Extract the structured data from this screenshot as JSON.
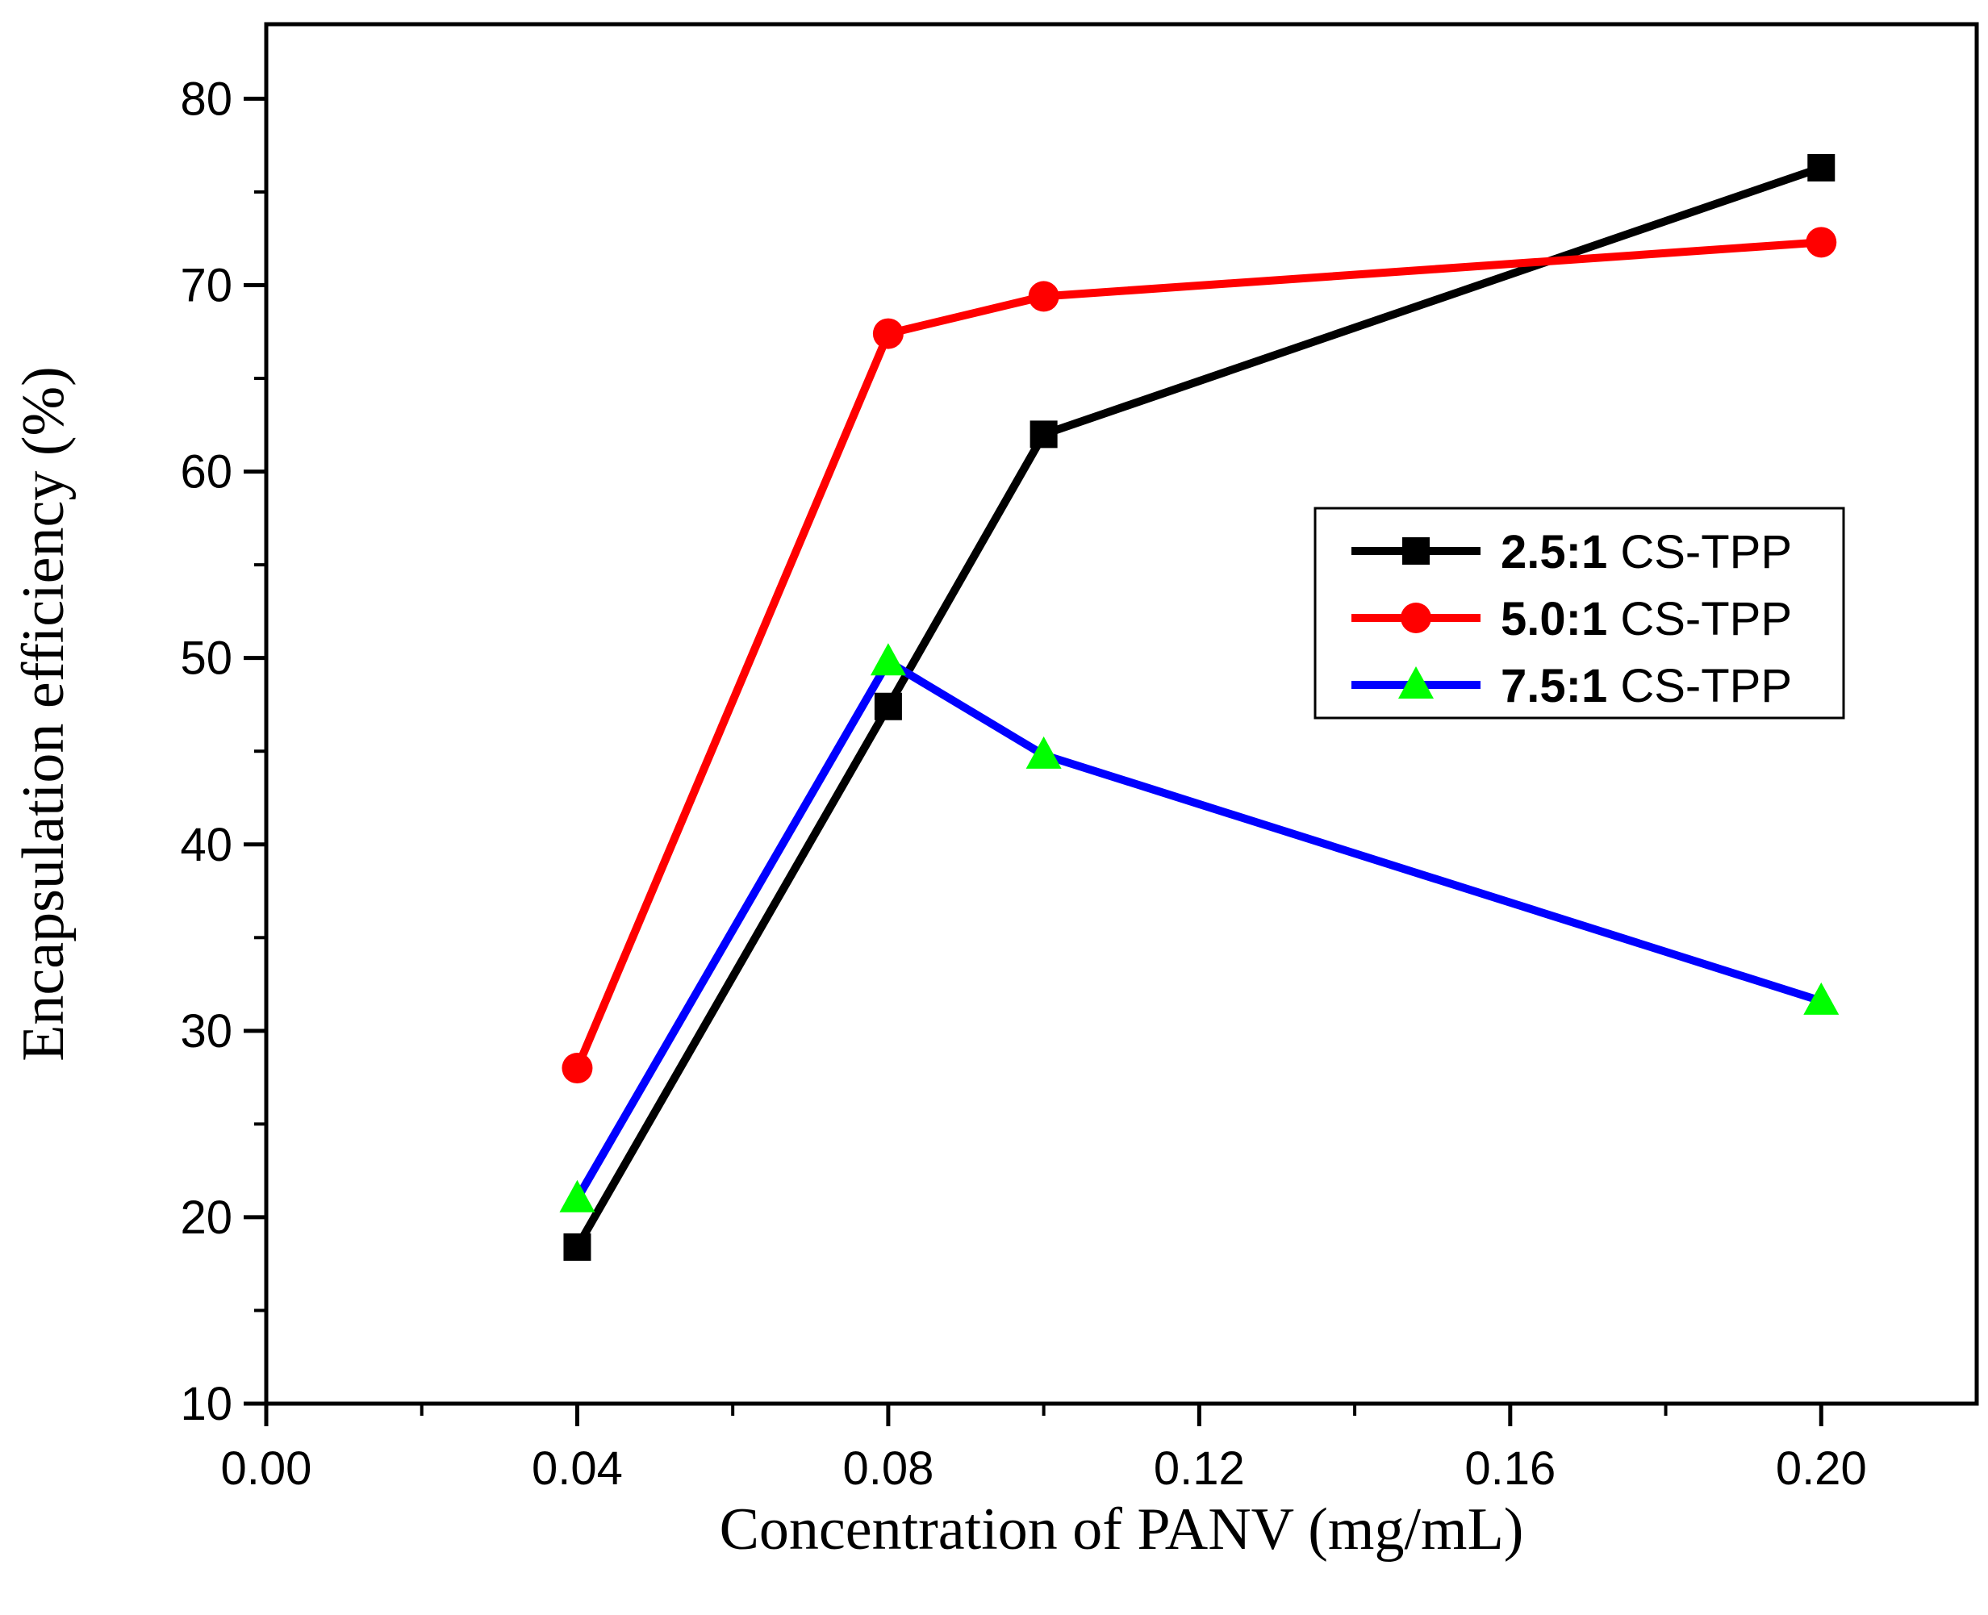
{
  "chart_data": {
    "type": "line",
    "title": "",
    "xlabel": "Concentration of PANV (mg/mL)",
    "ylabel": "Encapsulation efficiency (%)",
    "xlim": [
      0.0,
      0.22
    ],
    "ylim": [
      10,
      84
    ],
    "xticks": [
      0.0,
      0.04,
      0.08,
      0.12,
      0.16,
      0.2
    ],
    "xtick_labels": [
      "0.00",
      "0.04",
      "0.08",
      "0.12",
      "0.16",
      "0.20"
    ],
    "yticks": [
      10,
      20,
      30,
      40,
      50,
      60,
      70,
      80
    ],
    "ytick_labels": [
      "10",
      "20",
      "30",
      "40",
      "50",
      "60",
      "70",
      "80"
    ],
    "x": [
      0.04,
      0.08,
      0.1,
      0.2
    ],
    "grid": false,
    "legend_position": "center-right",
    "series": [
      {
        "name": "2.5:1 CS-TPP",
        "ratio": "2.5:1",
        "suffix": " CS-TPP",
        "color": "#000000",
        "marker": "square",
        "values": [
          18.4,
          47.4,
          62.0,
          76.3
        ]
      },
      {
        "name": "5.0:1 CS-TPP",
        "ratio": "5.0:1",
        "suffix": " CS-TPP",
        "color": "#ff0000",
        "marker": "circle",
        "values": [
          28.0,
          67.4,
          69.4,
          72.3
        ]
      },
      {
        "name": "7.5:1 CS-TPP",
        "ratio": "7.5:1",
        "suffix": " CS-TPP",
        "color": "#0000ff",
        "marker_color": "#00ff00",
        "marker": "triangle",
        "values": [
          21.0,
          49.8,
          44.8,
          31.6
        ]
      }
    ]
  }
}
